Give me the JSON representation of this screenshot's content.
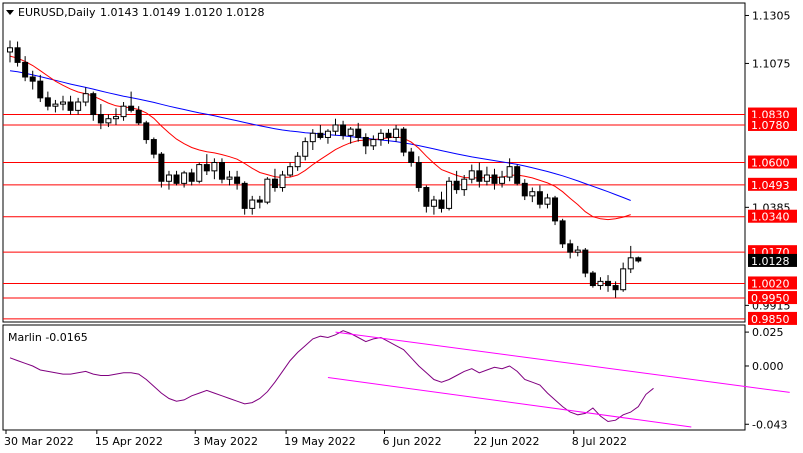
{
  "chart_data": [
    {
      "type": "candlestick",
      "symbol_header": "EURUSD,Daily",
      "ohlc_header": "1.0143 1.0149 1.0120 1.0128",
      "ylim": [
        0.984,
        1.136
      ],
      "y_ticks": [
        "1.1305",
        "1.1075",
        "1.0385",
        "0.9915"
      ],
      "x_ticks": [
        "30 Mar 2022",
        "15 Apr 2022",
        "3 May 2022",
        "19 May 2022",
        "6 Jun 2022",
        "22 Jun 2022",
        "8 Jul 2022"
      ],
      "current_price_label": "1.0128",
      "current_price": 1.0128,
      "levels": [
        {
          "label": "1.0830",
          "value": 1.083
        },
        {
          "label": "1.0780",
          "value": 1.078
        },
        {
          "label": "1.0600",
          "value": 1.06
        },
        {
          "label": "1.0493",
          "value": 1.0493
        },
        {
          "label": "1.0340",
          "value": 1.034
        },
        {
          "label": "1.0170",
          "value": 1.017
        },
        {
          "label": "1.0020",
          "value": 1.002
        },
        {
          "label": "0.9950",
          "value": 0.995
        },
        {
          "label": "0.9850",
          "value": 0.985
        }
      ],
      "candles": [
        [
          1.113,
          1.1185,
          1.108,
          1.115
        ],
        [
          1.115,
          1.118,
          1.106,
          1.108
        ],
        [
          1.108,
          1.111,
          1.099,
          1.101
        ],
        [
          1.101,
          1.104,
          1.095,
          1.099
        ],
        [
          1.099,
          1.102,
          1.089,
          1.091
        ],
        [
          1.091,
          1.094,
          1.085,
          1.087
        ],
        [
          1.087,
          1.09,
          1.084,
          1.088
        ],
        [
          1.088,
          1.092,
          1.085,
          1.089
        ],
        [
          1.089,
          1.092,
          1.083,
          1.085
        ],
        [
          1.085,
          1.091,
          1.083,
          1.089
        ],
        [
          1.089,
          1.096,
          1.087,
          1.093
        ],
        [
          1.093,
          1.094,
          1.08,
          1.083
        ],
        [
          1.083,
          1.088,
          1.076,
          1.079
        ],
        [
          1.079,
          1.083,
          1.077,
          1.081
        ],
        [
          1.081,
          1.086,
          1.078,
          1.082
        ],
        [
          1.082,
          1.089,
          1.08,
          1.087
        ],
        [
          1.087,
          1.094,
          1.084,
          1.085
        ],
        [
          1.085,
          1.087,
          1.078,
          1.079
        ],
        [
          1.079,
          1.08,
          1.069,
          1.071
        ],
        [
          1.071,
          1.072,
          1.062,
          1.064
        ],
        [
          1.064,
          1.065,
          1.048,
          1.051
        ],
        [
          1.051,
          1.056,
          1.047,
          1.054
        ],
        [
          1.054,
          1.056,
          1.049,
          1.05
        ],
        [
          1.05,
          1.056,
          1.048,
          1.055
        ],
        [
          1.055,
          1.057,
          1.049,
          1.051
        ],
        [
          1.051,
          1.06,
          1.05,
          1.059
        ],
        [
          1.059,
          1.064,
          1.054,
          1.056
        ],
        [
          1.056,
          1.062,
          1.052,
          1.06
        ],
        [
          1.06,
          1.062,
          1.05,
          1.052
        ],
        [
          1.052,
          1.056,
          1.049,
          1.053
        ],
        [
          1.053,
          1.056,
          1.047,
          1.05
        ],
        [
          1.05,
          1.051,
          1.035,
          1.038
        ],
        [
          1.038,
          1.044,
          1.035,
          1.042
        ],
        [
          1.042,
          1.044,
          1.038,
          1.041
        ],
        [
          1.041,
          1.053,
          1.04,
          1.052
        ],
        [
          1.052,
          1.057,
          1.046,
          1.048
        ],
        [
          1.048,
          1.056,
          1.046,
          1.054
        ],
        [
          1.054,
          1.06,
          1.053,
          1.058
        ],
        [
          1.058,
          1.065,
          1.056,
          1.063
        ],
        [
          1.063,
          1.072,
          1.061,
          1.07
        ],
        [
          1.07,
          1.076,
          1.066,
          1.074
        ],
        [
          1.074,
          1.078,
          1.071,
          1.072
        ],
        [
          1.072,
          1.076,
          1.069,
          1.075
        ],
        [
          1.075,
          1.081,
          1.073,
          1.078
        ],
        [
          1.078,
          1.08,
          1.071,
          1.073
        ],
        [
          1.073,
          1.077,
          1.069,
          1.076
        ],
        [
          1.076,
          1.079,
          1.07,
          1.072
        ],
        [
          1.072,
          1.074,
          1.064,
          1.068
        ],
        [
          1.068,
          1.073,
          1.066,
          1.071
        ],
        [
          1.071,
          1.076,
          1.068,
          1.074
        ],
        [
          1.074,
          1.076,
          1.069,
          1.072
        ],
        [
          1.072,
          1.078,
          1.07,
          1.076
        ],
        [
          1.076,
          1.077,
          1.063,
          1.065
        ],
        [
          1.065,
          1.067,
          1.058,
          1.06
        ],
        [
          1.06,
          1.063,
          1.046,
          1.048
        ],
        [
          1.048,
          1.049,
          1.036,
          1.039
        ],
        [
          1.039,
          1.044,
          1.035,
          1.042
        ],
        [
          1.042,
          1.046,
          1.036,
          1.038
        ],
        [
          1.038,
          1.053,
          1.037,
          1.051
        ],
        [
          1.051,
          1.056,
          1.045,
          1.047
        ],
        [
          1.047,
          1.054,
          1.044,
          1.052
        ],
        [
          1.052,
          1.059,
          1.05,
          1.056
        ],
        [
          1.056,
          1.06,
          1.048,
          1.051
        ],
        [
          1.051,
          1.058,
          1.049,
          1.054
        ],
        [
          1.054,
          1.057,
          1.047,
          1.05
        ],
        [
          1.05,
          1.056,
          1.048,
          1.053
        ],
        [
          1.053,
          1.062,
          1.051,
          1.058
        ],
        [
          1.058,
          1.059,
          1.049,
          1.05
        ],
        [
          1.05,
          1.052,
          1.042,
          1.044
        ],
        [
          1.044,
          1.048,
          1.041,
          1.046
        ],
        [
          1.046,
          1.049,
          1.038,
          1.04
        ],
        [
          1.04,
          1.045,
          1.038,
          1.043
        ],
        [
          1.043,
          1.044,
          1.03,
          1.032
        ],
        [
          1.032,
          1.033,
          1.019,
          1.021
        ],
        [
          1.021,
          1.023,
          1.014,
          1.017
        ],
        [
          1.017,
          1.02,
          1.015,
          1.018
        ],
        [
          1.018,
          1.019,
          1.005,
          1.007
        ],
        [
          1.007,
          1.008,
          1.0,
          1.001
        ],
        [
          1.001,
          1.005,
          0.999,
          1.003
        ],
        [
          1.003,
          1.006,
          0.998,
          1.001
        ],
        [
          1.001,
          1.003,
          0.9952,
          0.999
        ],
        [
          0.999,
          1.012,
          0.998,
          1.009
        ],
        [
          1.009,
          1.02,
          1.007,
          1.0143
        ],
        [
          1.0143,
          1.0149,
          1.012,
          1.0128
        ]
      ],
      "ma_fast": [
        1.111,
        1.11,
        1.1085,
        1.1065,
        1.104,
        1.1015,
        1.099,
        1.097,
        1.0952,
        1.0938,
        1.093,
        1.0918,
        1.0902,
        1.0885,
        1.0872,
        1.0866,
        1.0862,
        1.0854,
        1.0838,
        1.0812,
        1.0775,
        1.0742,
        1.0712,
        1.069,
        1.0672,
        1.066,
        1.0652,
        1.0646,
        1.0638,
        1.0628,
        1.0616,
        1.0595,
        1.0572,
        1.0552,
        1.0542,
        1.0532,
        1.0528,
        1.053,
        1.054,
        1.0562,
        1.059,
        1.0615,
        1.0638,
        1.0662,
        1.068,
        1.0695,
        1.0705,
        1.0708,
        1.071,
        1.0714,
        1.0718,
        1.0724,
        1.0716,
        1.0698,
        1.0668,
        1.063,
        1.0596,
        1.0566,
        1.0552,
        1.0538,
        1.0528,
        1.0526,
        1.0526,
        1.0528,
        1.0528,
        1.053,
        1.0538,
        1.054,
        1.0534,
        1.0526,
        1.0514,
        1.0502,
        1.0486,
        1.046,
        1.0428,
        1.0398,
        1.0364,
        1.034,
        1.033,
        1.0326,
        1.033,
        1.0338,
        1.035
      ],
      "ma_slow": [
        1.104,
        1.1035,
        1.1028,
        1.102,
        1.1012,
        1.1003,
        1.0994,
        1.0985,
        1.0976,
        1.0968,
        1.096,
        1.0952,
        1.0943,
        1.0934,
        1.0926,
        1.0918,
        1.0911,
        1.0904,
        1.0896,
        1.0888,
        1.0879,
        1.087,
        1.0862,
        1.0854,
        1.0846,
        1.0838,
        1.0831,
        1.0824,
        1.0816,
        1.0808,
        1.08,
        1.0792,
        1.0784,
        1.0776,
        1.0769,
        1.0762,
        1.0756,
        1.0751,
        1.0747,
        1.0743,
        1.074,
        1.0737,
        1.0734,
        1.0731,
        1.0728,
        1.0724,
        1.072,
        1.0716,
        1.0712,
        1.0708,
        1.0704,
        1.07,
        1.0694,
        1.0688,
        1.0681,
        1.0673,
        1.0665,
        1.0657,
        1.0649,
        1.0641,
        1.0634,
        1.0627,
        1.0621,
        1.0615,
        1.0609,
        1.0603,
        1.0597,
        1.0591,
        1.0583,
        1.0575,
        1.0566,
        1.0557,
        1.0547,
        1.0536,
        1.0524,
        1.0512,
        1.0499,
        1.0486,
        1.0473,
        1.046,
        1.0446,
        1.0432,
        1.0418
      ]
    },
    {
      "type": "line",
      "indicator_label": "Marlin -0.0165",
      "ylim": [
        -0.0465,
        0.0295
      ],
      "y_ticks": [
        "0.025",
        "0.000",
        "-0.043"
      ],
      "values": [
        0.006,
        0.004,
        0.002,
        0.0,
        -0.003,
        -0.004,
        -0.005,
        -0.006,
        -0.006,
        -0.005,
        -0.004,
        -0.006,
        -0.007,
        -0.007,
        -0.006,
        -0.005,
        -0.005,
        -0.006,
        -0.01,
        -0.015,
        -0.02,
        -0.024,
        -0.026,
        -0.025,
        -0.022,
        -0.02,
        -0.018,
        -0.02,
        -0.022,
        -0.024,
        -0.026,
        -0.028,
        -0.027,
        -0.024,
        -0.019,
        -0.012,
        -0.004,
        0.004,
        0.01,
        0.015,
        0.02,
        0.022,
        0.021,
        0.023,
        0.026,
        0.024,
        0.021,
        0.018,
        0.02,
        0.021,
        0.018,
        0.015,
        0.012,
        0.006,
        0.0,
        -0.005,
        -0.01,
        -0.012,
        -0.01,
        -0.007,
        -0.004,
        -0.002,
        -0.005,
        -0.003,
        -0.001,
        -0.002,
        0.0,
        -0.004,
        -0.01,
        -0.012,
        -0.014,
        -0.02,
        -0.025,
        -0.03,
        -0.034,
        -0.036,
        -0.035,
        -0.031,
        -0.037,
        -0.041,
        -0.04,
        -0.036,
        -0.034,
        -0.03,
        -0.021,
        -0.0165
      ]
    }
  ],
  "trend_lines": {
    "color": "#ff00ff",
    "upper": [
      [
        0.025,
        43
      ],
      [
        -0.0195,
        103
      ]
    ],
    "lower": [
      [
        -0.0085,
        42
      ],
      [
        -0.045,
        90
      ]
    ]
  },
  "x_tick_indices": [
    0,
    12,
    25,
    37,
    50,
    62,
    75
  ],
  "colors": {
    "background": "#ffffff",
    "candle": "#000000",
    "ma_fast": "#ff0000",
    "ma_slow": "#0000ff",
    "level": "#ff0000",
    "oscillator": "#800080",
    "label_bg_level": "#ff0000",
    "label_bg_price": "#000000",
    "grid_frame": "#000000"
  }
}
